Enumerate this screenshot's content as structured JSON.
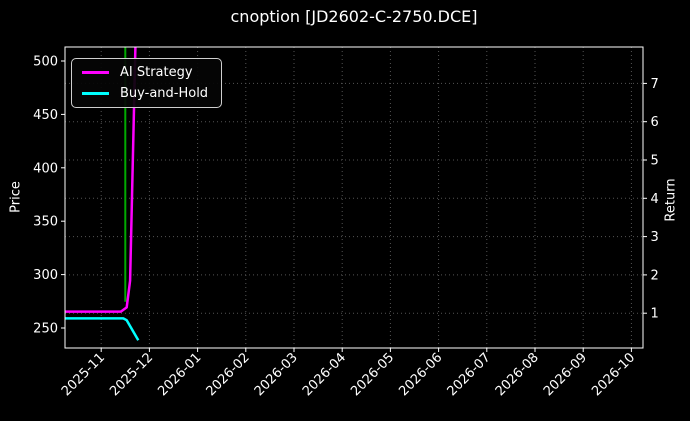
{
  "title": "cnoption [JD2602-C-2750.DCE]",
  "colors": {
    "background": "#000000",
    "text": "#ffffff",
    "spine": "#ffffff",
    "grid": "#545454",
    "ai_strategy": "#ff00ff",
    "buy_and_hold": "#00ffff",
    "event_marker": "#00aa00"
  },
  "chart_data": {
    "type": "line",
    "title": "cnoption [JD2602-C-2750.DCE]",
    "grid": {
      "show": true,
      "style": "dotted",
      "vertical_from": "x_ticks",
      "horizontal_from": "right_axis_ticks"
    },
    "x_axis": {
      "unit": "months_since_2025-11-01",
      "tick_labels": [
        "2025-11",
        "2025-12",
        "2026-01",
        "2026-02",
        "2026-03",
        "2026-04",
        "2026-05",
        "2026-06",
        "2026-07",
        "2026-08",
        "2026-09",
        "2026-10"
      ],
      "tick_values": [
        0,
        1,
        2,
        3,
        4,
        5,
        6,
        7,
        8,
        9,
        10,
        11
      ],
      "range": [
        -0.75,
        11.24
      ],
      "label_rotation_deg": 45
    },
    "y_left_axis": {
      "label": "Price",
      "tick_labels": [
        "250",
        "300",
        "350",
        "400",
        "450",
        "500"
      ],
      "tick_values": [
        250,
        300,
        350,
        400,
        450,
        500
      ],
      "range": [
        231.3,
        513.1
      ]
    },
    "y_right_axis": {
      "label": "Return",
      "tick_labels": [
        "1",
        "2",
        "3",
        "4",
        "5",
        "6",
        "7"
      ],
      "tick_values": [
        1,
        2,
        3,
        4,
        5,
        6,
        7
      ],
      "range": [
        0.09,
        7.95
      ]
    },
    "legend": {
      "position": "upper-left",
      "items": [
        {
          "label": "AI Strategy",
          "color": "#ff00ff"
        },
        {
          "label": "Buy-and-Hold",
          "color": "#00ffff"
        }
      ]
    },
    "series": [
      {
        "name": "AI Strategy",
        "axis": "right",
        "color": "#ff00ff",
        "width": 2.5,
        "points": [
          [
            -0.75,
            1.04
          ],
          [
            0.41,
            1.04
          ],
          [
            0.53,
            1.15
          ],
          [
            0.6,
            1.85
          ],
          [
            0.71,
            7.95
          ]
        ]
      },
      {
        "name": "Buy-and-Hold",
        "axis": "left",
        "color": "#00ffff",
        "width": 2.5,
        "points": [
          [
            -0.75,
            259
          ],
          [
            0.46,
            259
          ],
          [
            0.53,
            257.3
          ],
          [
            0.77,
            238.5
          ]
        ]
      }
    ],
    "markers": [
      {
        "type": "vline",
        "color": "#00aa00",
        "width": 2,
        "x": 0.5,
        "y_axis": "right",
        "y_from": 7.95,
        "y_to": 1.3
      }
    ]
  }
}
